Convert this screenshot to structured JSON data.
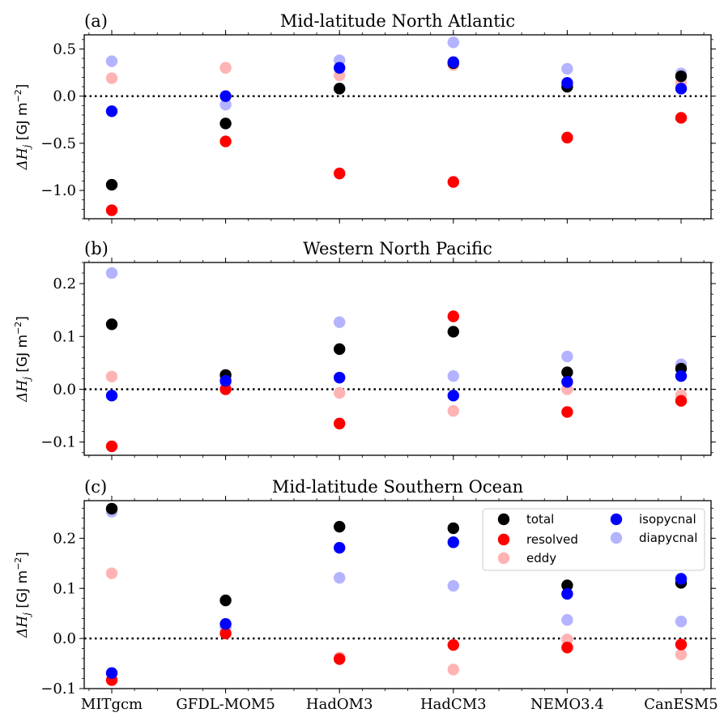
{
  "chart_data": [
    {
      "type": "scatter",
      "panel_label": "(a)",
      "title": "Mid-latitude North Atlantic",
      "ylabel_math": "ΔH",
      "ylabel_sub": "j",
      "ylabel_units": "[GJ m",
      "ylabel_exp": "−2",
      "ylabel_close": "]",
      "ylim": [
        -1.3,
        0.65
      ],
      "yticks": [
        0.5,
        0.0,
        -0.5,
        -1.0
      ],
      "ytick_labels": [
        "0.5",
        "0.0",
        "−0.5",
        "−1.0"
      ],
      "categories": [
        "MITgcm",
        "GFDL-MOM5",
        "HadOM3",
        "HadCM3",
        "NEMO3.4",
        "CanESM5"
      ],
      "series": [
        {
          "key": "total",
          "values": [
            -0.94,
            -0.29,
            0.08,
            0.35,
            0.1,
            0.21
          ]
        },
        {
          "key": "resolved",
          "values": [
            -1.21,
            -0.48,
            -0.82,
            -0.91,
            -0.44,
            -0.23
          ]
        },
        {
          "key": "eddy",
          "values": [
            0.19,
            0.3,
            0.22,
            0.33,
            0.12,
            0.14
          ]
        },
        {
          "key": "isopycnal",
          "values": [
            -0.16,
            0.0,
            0.3,
            0.36,
            0.14,
            0.08
          ]
        },
        {
          "key": "diapycnal",
          "values": [
            0.37,
            -0.09,
            0.38,
            0.57,
            0.29,
            0.24
          ]
        }
      ]
    },
    {
      "type": "scatter",
      "panel_label": "(b)",
      "title": "Western North Pacific",
      "ylabel_math": "ΔH",
      "ylabel_sub": "j",
      "ylabel_units": "[GJ m",
      "ylabel_exp": "−2",
      "ylabel_close": "]",
      "ylim": [
        -0.125,
        0.24
      ],
      "yticks": [
        0.2,
        0.1,
        0.0,
        -0.1
      ],
      "ytick_labels": [
        "0.2",
        "0.1",
        "0.0",
        "−0.1"
      ],
      "categories": [
        "MITgcm",
        "GFDL-MOM5",
        "HadOM3",
        "HadCM3",
        "NEMO3.4",
        "CanESM5"
      ],
      "series": [
        {
          "key": "total",
          "values": [
            0.123,
            0.027,
            0.076,
            0.109,
            0.032,
            0.039
          ]
        },
        {
          "key": "resolved",
          "values": [
            -0.108,
            0.0,
            -0.065,
            0.138,
            -0.043,
            -0.022
          ]
        },
        {
          "key": "eddy",
          "values": [
            0.024,
            0.022,
            -0.007,
            -0.041,
            0.0,
            -0.011
          ]
        },
        {
          "key": "isopycnal",
          "values": [
            -0.012,
            0.016,
            0.022,
            -0.012,
            0.014,
            0.025
          ]
        },
        {
          "key": "diapycnal",
          "values": [
            0.22,
            0.012,
            0.127,
            0.025,
            0.062,
            0.047
          ]
        }
      ]
    },
    {
      "type": "scatter",
      "panel_label": "(c)",
      "title": "Mid-latitude Southern Ocean",
      "ylabel_math": "ΔH",
      "ylabel_sub": "j",
      "ylabel_units": "[GJ m",
      "ylabel_exp": "−2",
      "ylabel_close": "]",
      "ylim": [
        -0.1,
        0.275
      ],
      "yticks": [
        0.2,
        0.1,
        0.0,
        -0.1
      ],
      "ytick_labels": [
        "0.2",
        "0.1",
        "0.0",
        "−0.1"
      ],
      "categories": [
        "MITgcm",
        "GFDL-MOM5",
        "HadOM3",
        "HadCM3",
        "NEMO3.4",
        "CanESM5"
      ],
      "series": [
        {
          "key": "total",
          "values": [
            0.259,
            0.076,
            0.223,
            0.22,
            0.106,
            0.111
          ]
        },
        {
          "key": "resolved",
          "values": [
            -0.083,
            0.01,
            -0.041,
            -0.013,
            -0.018,
            -0.012
          ]
        },
        {
          "key": "eddy",
          "values": [
            0.13,
            0.012,
            -0.038,
            -0.062,
            -0.002,
            -0.032
          ]
        },
        {
          "key": "isopycnal",
          "values": [
            -0.069,
            0.029,
            0.181,
            0.192,
            0.089,
            0.119
          ]
        },
        {
          "key": "diapycnal",
          "values": [
            0.253,
            0.022,
            0.121,
            0.105,
            0.037,
            0.034
          ]
        }
      ],
      "legend": {
        "placement": "top-right",
        "entries": [
          {
            "key": "total",
            "label": "total"
          },
          {
            "key": "resolved",
            "label": "resolved"
          },
          {
            "key": "eddy",
            "label": "eddy"
          },
          {
            "key": "isopycnal",
            "label": "isopycnal"
          },
          {
            "key": "diapycnal",
            "label": "diapycnal"
          }
        ]
      }
    }
  ],
  "series_colors": {
    "total": "#000000",
    "resolved": "#ff0000",
    "eddy": "#ffb3b3",
    "isopycnal": "#0000ff",
    "diapycnal": "#b3b3ff"
  },
  "grid": false,
  "zero_line": "dotted"
}
